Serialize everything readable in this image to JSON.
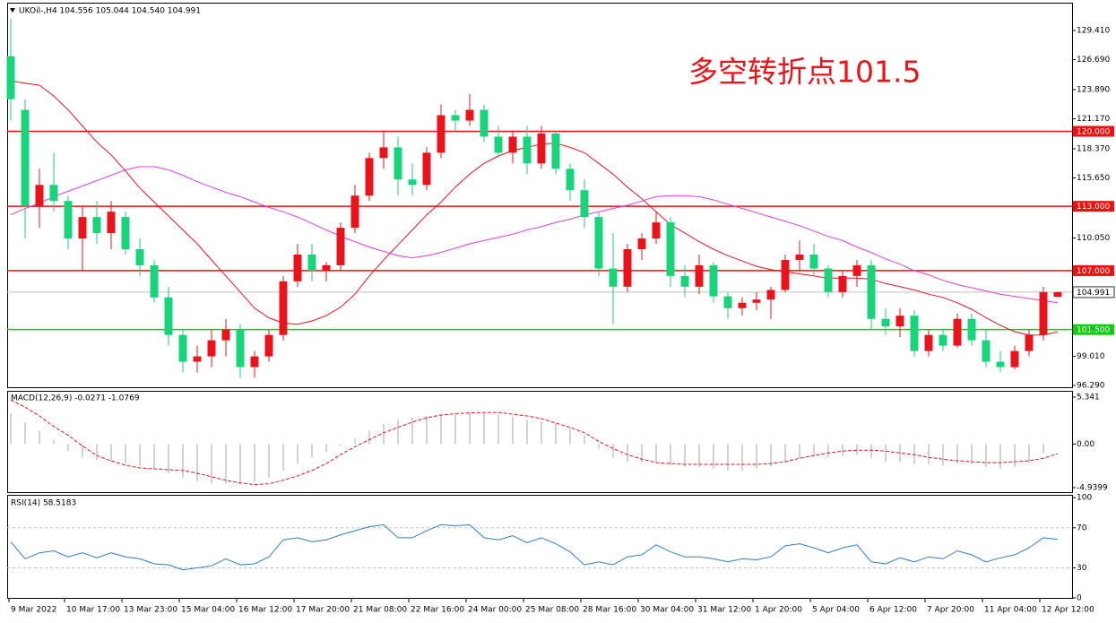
{
  "chart_data": [
    {
      "type": "candlestick",
      "title": "UKOil-,H4 104.556 105.044 104.540 104.991",
      "annotation": "多空转折点101.5",
      "annotation_color": "#e8141b",
      "up_color": "#e8141b",
      "down_color": "#17d47b",
      "xlim": [
        -0.25,
        74
      ],
      "xticks": [
        {
          "value": -0.125,
          "label": "9 Mar 2022"
        },
        {
          "value": 3.75,
          "label": "10 Mar 17:00"
        },
        {
          "value": 7.75,
          "label": "13 Mar 23:00"
        },
        {
          "value": 11.75,
          "label": "15 Mar 04:00"
        },
        {
          "value": 15.75,
          "label": "16 Mar 12:00"
        },
        {
          "value": 19.75,
          "label": "17 Mar 20:00"
        },
        {
          "value": 23.75,
          "label": "21 Mar 08:00"
        },
        {
          "value": 27.75,
          "label": "22 Mar 16:00"
        },
        {
          "value": 31.75,
          "label": "24 Mar 00:00"
        },
        {
          "value": 35.75,
          "label": "25 Mar 08:00"
        },
        {
          "value": 39.75,
          "label": "28 Mar 16:00"
        },
        {
          "value": 43.75,
          "label": "30 Mar 04:00"
        },
        {
          "value": 47.75,
          "label": "31 Mar 12:00"
        },
        {
          "value": 51.75,
          "label": "1 Apr 20:00"
        },
        {
          "value": 55.75,
          "label": "5 Apr 04:00"
        },
        {
          "value": 59.75,
          "label": "6 Apr 12:00"
        },
        {
          "value": 63.75,
          "label": "7 Apr 20:00"
        },
        {
          "value": 67.75,
          "label": "11 Apr 04:00"
        },
        {
          "value": 71.75,
          "label": "12 Apr 12:00"
        }
      ],
      "ylim": [
        96.12,
        132.0
      ],
      "yticks": [
        {
          "value": 129.41,
          "label": "129.410"
        },
        {
          "value": 126.69,
          "label": "126.690"
        },
        {
          "value": 123.89,
          "label": "123.890"
        },
        {
          "value": 121.17,
          "label": "121.170"
        },
        {
          "value": 118.37,
          "label": "118.370"
        },
        {
          "value": 115.65,
          "label": "115.650"
        },
        {
          "value": 110.05,
          "label": "110.050"
        },
        {
          "value": 99.01,
          "label": "99.010"
        },
        {
          "value": 96.29,
          "label": "96.290"
        }
      ],
      "open": [
        127,
        122,
        113,
        115,
        113.5,
        110,
        112,
        110.5,
        112,
        109,
        107.5,
        104.5,
        101,
        98.5,
        99,
        100.5,
        101.5,
        98,
        99,
        101,
        106,
        108.5,
        107,
        107.5,
        111,
        114,
        117.5,
        118.5,
        115.5,
        115,
        118,
        121.5,
        121,
        122,
        119.5,
        118,
        119.5,
        117,
        119.8,
        116.5,
        114.5,
        112,
        107.2,
        105.5,
        109,
        110,
        111.5,
        106.5,
        105.5,
        107.5,
        104.6,
        103.5,
        104,
        104.3,
        105.2,
        108,
        108.5,
        107.2,
        105,
        106.5,
        107.5,
        102.5,
        101.8,
        102.8,
        99.5,
        101,
        100,
        102.5,
        100.5,
        98.5,
        98,
        99.5,
        101,
        104.556
      ],
      "high": [
        130.5,
        123,
        116.5,
        118,
        114,
        113,
        113.5,
        113.5,
        112.5,
        110,
        108,
        105.5,
        101.5,
        100,
        101.5,
        102.5,
        102,
        99.5,
        101.5,
        106.5,
        109.5,
        109.5,
        107.8,
        111.5,
        115,
        118,
        120,
        119.5,
        117,
        118.5,
        122.5,
        122,
        123.5,
        122.5,
        120.5,
        120,
        120.5,
        120.5,
        120,
        117,
        115.5,
        112.5,
        110.5,
        109.5,
        110.5,
        112.5,
        112,
        107.5,
        108.5,
        107.8,
        105,
        104.5,
        105,
        105.5,
        108.5,
        109.8,
        109.5,
        107.5,
        107,
        108,
        108,
        103.5,
        103.5,
        103.3,
        101.5,
        101.5,
        103,
        103,
        101.5,
        99.5,
        100,
        101.5,
        105.5,
        105.044
      ],
      "low": [
        121,
        110,
        111,
        112.5,
        109,
        107,
        109.5,
        109,
        108.5,
        106.5,
        104,
        100,
        97.5,
        97.5,
        98,
        99,
        97,
        97,
        98.5,
        100.5,
        105.5,
        106,
        106,
        107,
        110.5,
        113.5,
        116.5,
        114,
        114,
        114.5,
        117.5,
        120,
        120.5,
        119,
        117.5,
        117,
        116,
        116.5,
        116,
        113.5,
        111,
        106.5,
        102,
        105,
        108,
        109.5,
        105.5,
        104.5,
        104.8,
        104,
        102.5,
        102.8,
        103.3,
        102.5,
        105,
        107,
        106.5,
        104.5,
        104.5,
        105.5,
        101.5,
        101,
        100.8,
        99,
        99,
        99.5,
        99.8,
        100,
        98,
        97.5,
        97.8,
        99,
        100.5,
        104.54
      ],
      "close": [
        123,
        113,
        115,
        113.5,
        110,
        112,
        110.5,
        112.5,
        109,
        107.5,
        104.5,
        101,
        98.5,
        99,
        100.5,
        101.5,
        98,
        99,
        101,
        106,
        108.5,
        107,
        107.5,
        111,
        114,
        117.5,
        118.5,
        115.5,
        115,
        118,
        121.5,
        121,
        122,
        119.5,
        118,
        119.5,
        117,
        119.8,
        116.5,
        114.5,
        112,
        107.2,
        105.5,
        109,
        110,
        111.5,
        106.5,
        105.5,
        107.5,
        104.6,
        103.5,
        104,
        104.3,
        105.2,
        108,
        108.5,
        107.2,
        105,
        106.5,
        107.5,
        102.5,
        101.8,
        102.8,
        99.5,
        101,
        100,
        102.5,
        100.5,
        98.5,
        98,
        99.5,
        101,
        105,
        104.991
      ],
      "overlays": [
        {
          "color": "#e8141b",
          "values": [
            124.7,
            124.5,
            124.3,
            123.3,
            122,
            120.5,
            119,
            117.8,
            116.3,
            114.7,
            113.4,
            112.1,
            110.8,
            109.5,
            108,
            106.5,
            105,
            103.5,
            102.6,
            102.1,
            102,
            102.3,
            102.8,
            103.6,
            104.8,
            106.5,
            108,
            109.4,
            110.8,
            112.2,
            113.4,
            114.8,
            116,
            117,
            117.7,
            118.2,
            118.5,
            118.8,
            118.9,
            118.5,
            118,
            117,
            116,
            114.8,
            113.7,
            112.5,
            111.3,
            110.5,
            109.7,
            109,
            108.4,
            107.9,
            107.4,
            107.1,
            106.9,
            106.7,
            106.5,
            106.3,
            106.3,
            106.3,
            106.2,
            105.8,
            105.5,
            105.2,
            104.8,
            104.5,
            104,
            103.4,
            102.6,
            101.9,
            101.3,
            101,
            101,
            101.3
          ]
        },
        {
          "color": "#e23de2",
          "values": [
            112.2,
            112.8,
            113.3,
            113.9,
            114.4,
            114.9,
            115.4,
            115.9,
            116.4,
            116.7,
            116.7,
            116.4,
            115.9,
            115.3,
            114.8,
            114.3,
            113.9,
            113.4,
            112.9,
            112.5,
            112,
            111.4,
            110.8,
            110.2,
            109.7,
            109.2,
            108.8,
            108.4,
            108.2,
            108.4,
            108.7,
            109.1,
            109.5,
            109.8,
            110.1,
            110.4,
            110.8,
            111.1,
            111.5,
            111.8,
            112.2,
            112.5,
            112.8,
            113.1,
            113.5,
            113.9,
            114,
            114,
            113.9,
            113.6,
            113.2,
            112.8,
            112.4,
            112,
            111.6,
            111.2,
            110.7,
            110.2,
            109.8,
            109.2,
            108.7,
            108.1,
            107.6,
            107,
            106.6,
            106.1,
            105.7,
            105.4,
            105.1,
            104.8,
            104.6,
            104.4,
            104.2,
            104
          ]
        }
      ],
      "levels": [
        {
          "value": 120,
          "label": "120.000",
          "color": "#ee1111"
        },
        {
          "value": 113,
          "label": "113.000",
          "color": "#ee1111"
        },
        {
          "value": 107,
          "label": "107.000",
          "color": "#ee1111"
        },
        {
          "value": 101.5,
          "label": "101.500",
          "color": "#11cc11"
        }
      ],
      "last_price": {
        "value": 104.991,
        "label": "104.991",
        "color": "#c0c0c0"
      }
    },
    {
      "type": "macd",
      "title": "MACD(12,26,9) -0.0271 -1.0769",
      "color": "#b4b4b4",
      "values": [
        3.5,
        2.5,
        1.5,
        0.5,
        -0.8,
        -1.5,
        -1.8,
        -2,
        -2.2,
        -2.5,
        -2.8,
        -3.3,
        -3.8,
        -4.2,
        -4.5,
        -4.5,
        -4.6,
        -4.3,
        -3.8,
        -3,
        -2.2,
        -1.5,
        -0.9,
        -0.2,
        0.6,
        1.5,
        2.3,
        2.8,
        3,
        3.2,
        3.4,
        3.5,
        3.6,
        3.5,
        3.3,
        3.1,
        2.8,
        2.6,
        2.3,
        1.8,
        1,
        -0.5,
        -1.5,
        -2,
        -2.1,
        -2,
        -2.4,
        -2.6,
        -2.6,
        -2.8,
        -3,
        -3,
        -2.8,
        -2.5,
        -2,
        -1.6,
        -1.4,
        -1.5,
        -1.4,
        -1.2,
        -1.6,
        -2,
        -2,
        -2.3,
        -2.3,
        -2.4,
        -2.2,
        -2.3,
        -2.6,
        -2.8,
        -2.6,
        -2.1,
        -1,
        -0.0271
      ],
      "signal": {
        "color": "#e8141b",
        "values": [
          5,
          4.2,
          3.2,
          2,
          1,
          -0.2,
          -1.3,
          -1.9,
          -2.4,
          -2.7,
          -2.8,
          -2.9,
          -3,
          -3.3,
          -3.7,
          -4.1,
          -4.4,
          -4.6,
          -4.5,
          -4.1,
          -3.6,
          -3,
          -2.2,
          -1.2,
          -0.3,
          0.5,
          1.3,
          1.9,
          2.5,
          3,
          3.3,
          3.45,
          3.55,
          3.6,
          3.6,
          3.4,
          3.2,
          2.9,
          2.4,
          1.9,
          1.3,
          0.3,
          -0.5,
          -1.2,
          -1.7,
          -2.1,
          -2.2,
          -2.3,
          -2.3,
          -2.3,
          -2.3,
          -2.3,
          -2.3,
          -2.2,
          -2,
          -1.6,
          -1.3,
          -1,
          -0.8,
          -0.7,
          -0.7,
          -0.8,
          -1,
          -1.2,
          -1.5,
          -1.7,
          -1.9,
          -2,
          -2.1,
          -2.1,
          -2,
          -1.9,
          -1.6,
          -1.0769
        ]
      },
      "ylim": [
        -5.45,
        6.05
      ],
      "yticks": [
        5.341,
        {
          "value": 0,
          "label": "0.00"
        },
        -4.9399
      ]
    },
    {
      "type": "line",
      "title": "RSI(14) 58.5183",
      "color": "#2a7fd4",
      "values": [
        56,
        39,
        45,
        47,
        41,
        45,
        40,
        45,
        41,
        39,
        34,
        33,
        28,
        30,
        32,
        39,
        33,
        34,
        41,
        58,
        60,
        56,
        58,
        63,
        67,
        71,
        73,
        60,
        60,
        67,
        73,
        72,
        73,
        60,
        58,
        62,
        55,
        60,
        54,
        46,
        33,
        36,
        33,
        41,
        43,
        53,
        46,
        41,
        41,
        39,
        36,
        39,
        38,
        41,
        52,
        54,
        50,
        45,
        50,
        53,
        36,
        34,
        40,
        36,
        41,
        39,
        47,
        43,
        36,
        40,
        43,
        50,
        60,
        58.5183
      ],
      "ylim": [
        0,
        102
      ],
      "yticks": [
        100,
        70,
        30,
        0
      ],
      "levels": [
        70,
        30
      ]
    }
  ]
}
